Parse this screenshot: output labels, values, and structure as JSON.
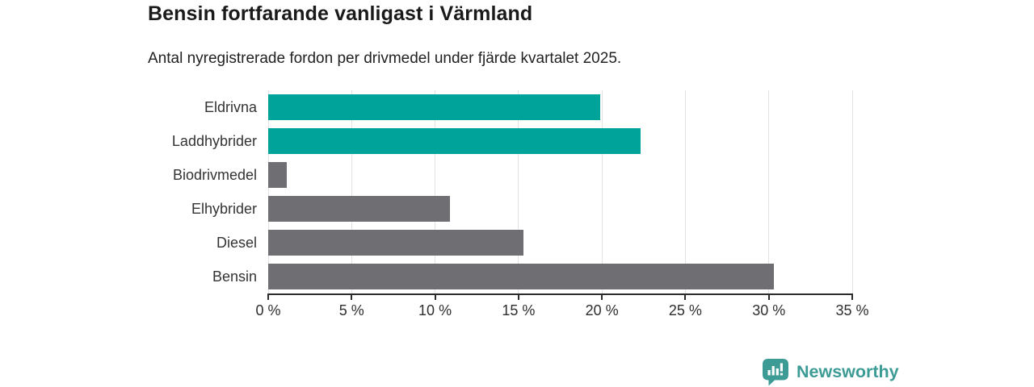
{
  "header": {
    "title": "Bensin fortfarande vanligast i Värmland",
    "subtitle": "Antal nyregistrerade fordon per drivmedel under fjärde kvartalet 2025."
  },
  "chart_data": {
    "type": "bar",
    "orientation": "horizontal",
    "title": "Bensin fortfarande vanligast i Värmland",
    "subtitle": "Antal nyregistrerade fordon per drivmedel under fjärde kvartalet 2025.",
    "categories": [
      "Eldrivna",
      "Laddhybrider",
      "Biodrivmedel",
      "Elhybrider",
      "Diesel",
      "Bensin"
    ],
    "values": [
      19.9,
      22.3,
      1.1,
      10.9,
      15.3,
      30.3
    ],
    "unit": "%",
    "colors": [
      "#00a39a",
      "#00a39a",
      "#6e6e73",
      "#6e6e73",
      "#6e6e73",
      "#6e6e73"
    ],
    "xlim": [
      0,
      35
    ],
    "x_tick_values": [
      0,
      5,
      10,
      15,
      20,
      25,
      30,
      35
    ],
    "x_tick_labels": [
      "0 %",
      "5 %",
      "10 %",
      "15 %",
      "20 %",
      "25 %",
      "30 %",
      "35 %"
    ],
    "grid": true,
    "legend": false
  },
  "branding": {
    "logo_text": "Newsworthy",
    "logo_icon": "bar-chart-speech-bubble-icon",
    "logo_color": "#3d9b96"
  },
  "colors": {
    "background": "#ffffff",
    "teal_bar": "#00a39a",
    "gray_bar": "#6e6e73",
    "gridline": "#e3e3e3",
    "axis": "#2b2b2b",
    "title_text": "#1a1a1a",
    "subtitle_text": "#222222",
    "label_text": "#333333"
  }
}
